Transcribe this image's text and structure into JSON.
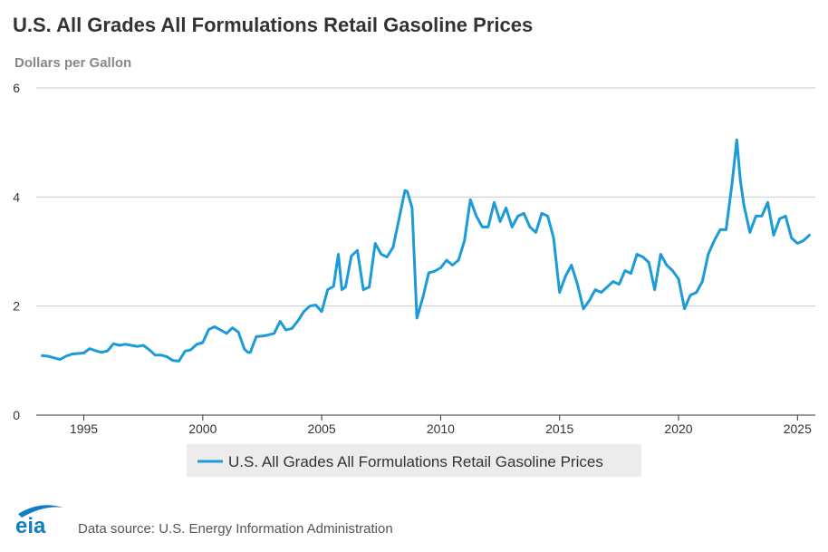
{
  "title": "U.S. All Grades All Formulations Retail Gasoline Prices",
  "y_unit": "Dollars per Gallon",
  "source": "Data source: U.S. Energy Information Administration",
  "logo_text": "eia",
  "colors": {
    "series": "#1b9bd7",
    "grid": "#cccccc",
    "axis": "#333333",
    "logo": "#0f7fc1"
  },
  "chart_data": {
    "type": "line",
    "title": "U.S. All Grades All Formulations Retail Gasoline Prices",
    "ylabel": "Dollars per Gallon",
    "xlabel": "",
    "xlim": [
      1993.0,
      2025.75
    ],
    "ylim": [
      0,
      6
    ],
    "x_ticks": [
      1995,
      2000,
      2005,
      2010,
      2015,
      2020,
      2025
    ],
    "y_ticks": [
      0,
      2,
      4,
      6
    ],
    "grid": true,
    "legend_position": "bottom-center",
    "series": [
      {
        "name": "U.S. All Grades All Formulations Retail Gasoline Prices",
        "x": [
          1993.25,
          1993.5,
          1993.75,
          1994.0,
          1994.25,
          1994.5,
          1994.75,
          1995.0,
          1995.25,
          1995.5,
          1995.75,
          1996.0,
          1996.25,
          1996.5,
          1996.75,
          1997.0,
          1997.25,
          1997.5,
          1997.75,
          1998.0,
          1998.25,
          1998.5,
          1998.75,
          1999.0,
          1999.25,
          1999.5,
          1999.75,
          2000.0,
          2000.25,
          2000.5,
          2000.75,
          2001.0,
          2001.25,
          2001.5,
          2001.75,
          2001.9,
          2002.0,
          2002.25,
          2002.5,
          2002.75,
          2003.0,
          2003.25,
          2003.5,
          2003.75,
          2004.0,
          2004.25,
          2004.5,
          2004.75,
          2005.0,
          2005.25,
          2005.5,
          2005.7,
          2005.85,
          2006.0,
          2006.25,
          2006.5,
          2006.75,
          2007.0,
          2007.25,
          2007.5,
          2007.75,
          2008.0,
          2008.25,
          2008.5,
          2008.6,
          2008.8,
          2009.0,
          2009.25,
          2009.5,
          2009.75,
          2010.0,
          2010.25,
          2010.5,
          2010.75,
          2011.0,
          2011.25,
          2011.5,
          2011.75,
          2012.0,
          2012.25,
          2012.5,
          2012.75,
          2013.0,
          2013.25,
          2013.5,
          2013.75,
          2014.0,
          2014.25,
          2014.5,
          2014.75,
          2015.0,
          2015.25,
          2015.5,
          2015.75,
          2016.0,
          2016.25,
          2016.5,
          2016.75,
          2017.0,
          2017.25,
          2017.5,
          2017.75,
          2018.0,
          2018.25,
          2018.5,
          2018.75,
          2019.0,
          2019.25,
          2019.5,
          2019.75,
          2020.0,
          2020.25,
          2020.5,
          2020.75,
          2021.0,
          2021.25,
          2021.5,
          2021.75,
          2022.0,
          2022.25,
          2022.45,
          2022.6,
          2022.75,
          2023.0,
          2023.25,
          2023.5,
          2023.75,
          2024.0,
          2024.25,
          2024.5,
          2024.75,
          2025.0,
          2025.25,
          2025.5
        ],
        "values": [
          1.09,
          1.08,
          1.05,
          1.02,
          1.08,
          1.12,
          1.13,
          1.14,
          1.22,
          1.18,
          1.15,
          1.18,
          1.31,
          1.28,
          1.3,
          1.28,
          1.26,
          1.28,
          1.2,
          1.1,
          1.1,
          1.07,
          1.0,
          0.99,
          1.17,
          1.2,
          1.3,
          1.33,
          1.57,
          1.62,
          1.56,
          1.5,
          1.6,
          1.52,
          1.21,
          1.15,
          1.15,
          1.44,
          1.45,
          1.47,
          1.5,
          1.72,
          1.56,
          1.59,
          1.73,
          1.9,
          2.0,
          2.02,
          1.9,
          2.3,
          2.36,
          2.95,
          2.3,
          2.35,
          2.92,
          3.02,
          2.3,
          2.35,
          3.15,
          2.95,
          2.9,
          3.08,
          3.6,
          4.12,
          4.1,
          3.8,
          1.78,
          2.15,
          2.61,
          2.64,
          2.7,
          2.84,
          2.75,
          2.84,
          3.2,
          3.95,
          3.65,
          3.45,
          3.45,
          3.9,
          3.55,
          3.8,
          3.45,
          3.65,
          3.7,
          3.45,
          3.35,
          3.7,
          3.65,
          3.25,
          2.25,
          2.55,
          2.75,
          2.4,
          1.95,
          2.1,
          2.3,
          2.25,
          2.35,
          2.45,
          2.4,
          2.65,
          2.6,
          2.95,
          2.9,
          2.8,
          2.3,
          2.95,
          2.75,
          2.65,
          2.5,
          1.95,
          2.2,
          2.25,
          2.45,
          2.95,
          3.2,
          3.4,
          3.4,
          4.25,
          5.05,
          4.3,
          3.85,
          3.35,
          3.65,
          3.65,
          3.9,
          3.3,
          3.6,
          3.65,
          3.25,
          3.15,
          3.2,
          3.3
        ]
      }
    ]
  }
}
